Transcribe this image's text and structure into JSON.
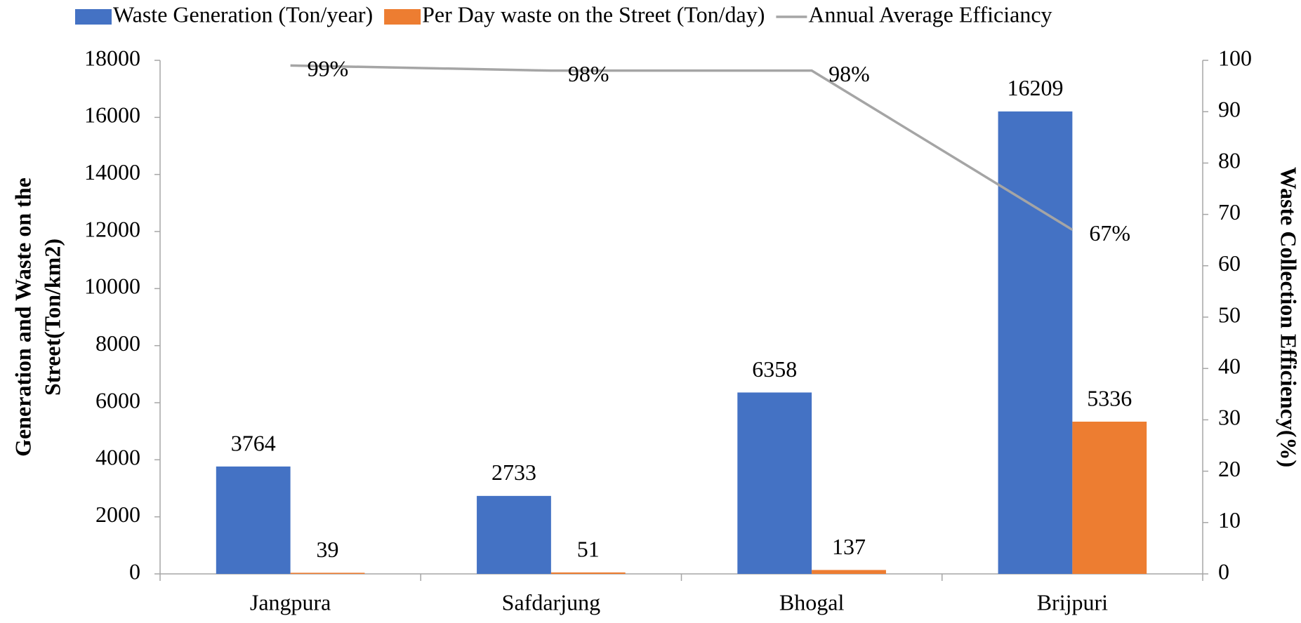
{
  "chart_data": {
    "type": "bar",
    "categories": [
      "Jangpura",
      "Safdarjung",
      "Bhogal",
      "Brijpuri"
    ],
    "series": [
      {
        "name": "Waste Generation (Ton/year)",
        "type": "bar",
        "color": "#4472c4",
        "values": [
          3764,
          2733,
          6358,
          16209
        ]
      },
      {
        "name": "Per Day waste on the Street (Ton/day)",
        "type": "bar",
        "color": "#ed7d31",
        "values": [
          39,
          51,
          137,
          5336
        ]
      },
      {
        "name": "Annual Average Efficiancy",
        "type": "line",
        "axis": "y2",
        "color": "#a5a5a5",
        "values": [
          99,
          98,
          98,
          67
        ],
        "value_labels": [
          "99%",
          "98%",
          "98%",
          "67%"
        ]
      }
    ],
    "ylabel_lines": [
      "Generation and Waste on the",
      "Street(Ton/km2)"
    ],
    "y2label": "Waste Collection Efficiency(%)",
    "ylim": [
      0,
      18000
    ],
    "yticks": [
      0,
      2000,
      4000,
      6000,
      8000,
      10000,
      12000,
      14000,
      16000,
      18000
    ],
    "y2lim": [
      0,
      100
    ],
    "y2ticks": [
      0,
      10,
      20,
      30,
      40,
      50,
      60,
      70,
      80,
      90,
      100
    ],
    "legend": "top",
    "grid": false
  }
}
